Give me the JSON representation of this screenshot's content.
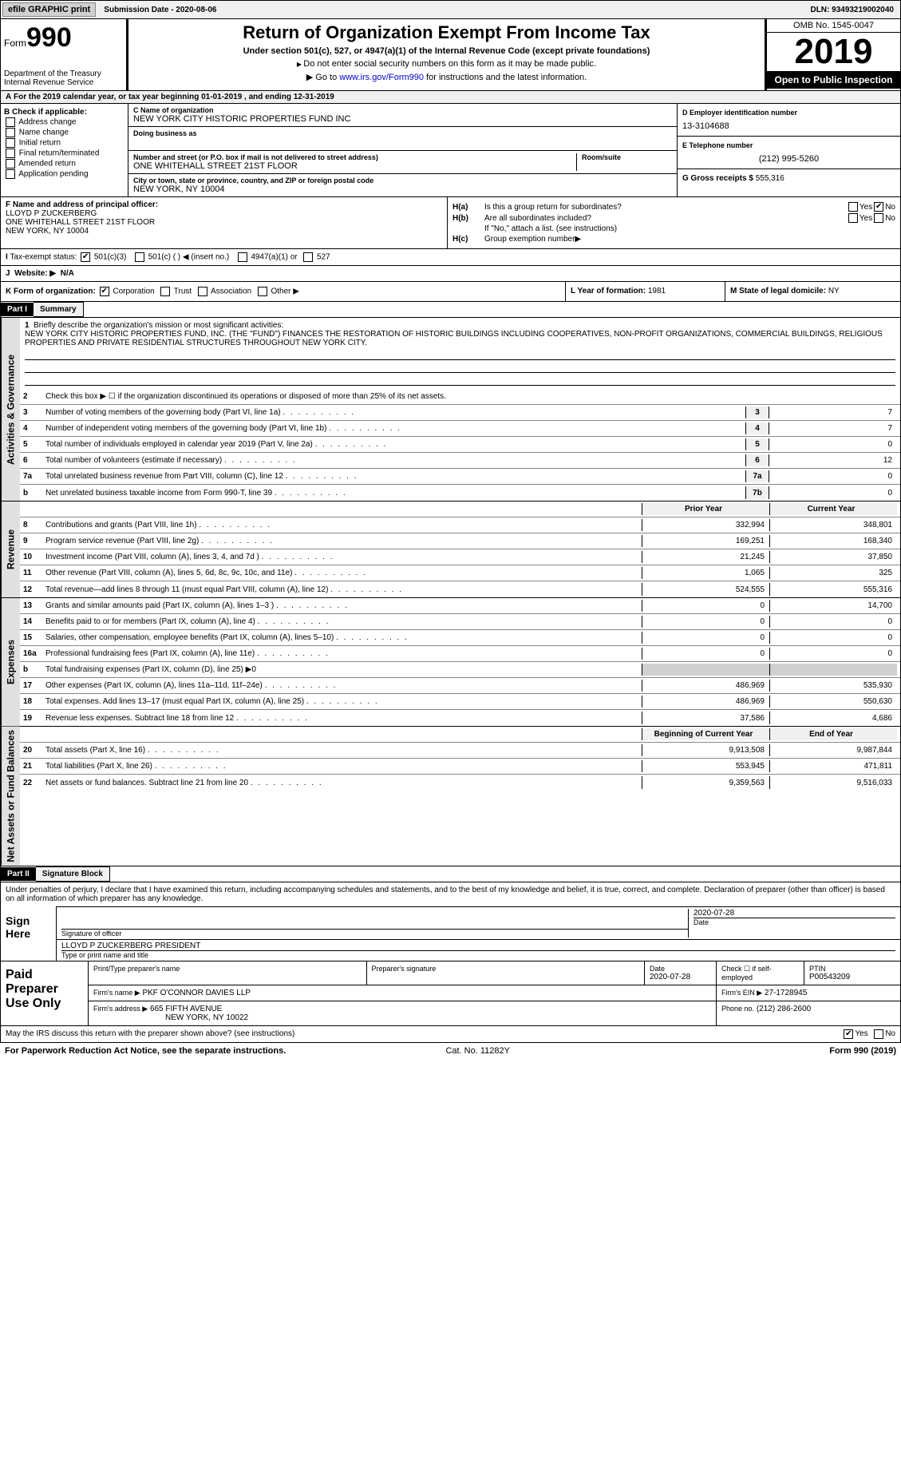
{
  "topbar": {
    "efile": "efile GRAPHIC print",
    "submission": "Submission Date - 2020-08-06",
    "dln": "DLN: 93493219002040"
  },
  "header": {
    "form_label": "Form",
    "form_num": "990",
    "dept": "Department of the Treasury\nInternal Revenue Service",
    "title": "Return of Organization Exempt From Income Tax",
    "sub1": "Under section 501(c), 527, or 4947(a)(1) of the Internal Revenue Code (except private foundations)",
    "sub2": "Do not enter social security numbers on this form as it may be made public.",
    "sub3_pre": "Go to ",
    "sub3_link": "www.irs.gov/Form990",
    "sub3_post": " for instructions and the latest information.",
    "omb": "OMB No. 1545-0047",
    "year": "2019",
    "inspect": "Open to Public Inspection"
  },
  "taxyear": "For the 2019 calendar year, or tax year beginning 01-01-2019   , and ending 12-31-2019",
  "boxB": {
    "label": "B Check if applicable:",
    "items": [
      "Address change",
      "Name change",
      "Initial return",
      "Final return/terminated",
      "Amended return",
      "Application pending"
    ]
  },
  "boxC": {
    "name_lbl": "C Name of organization",
    "name": "NEW YORK CITY HISTORIC PROPERTIES FUND INC",
    "dba_lbl": "Doing business as",
    "dba": "",
    "addr_lbl": "Number and street (or P.O. box if mail is not delivered to street address)",
    "addr": "ONE WHITEHALL STREET 21ST FLOOR",
    "room_lbl": "Room/suite",
    "city_lbl": "City or town, state or province, country, and ZIP or foreign postal code",
    "city": "NEW YORK, NY  10004"
  },
  "boxD": {
    "lbl": "D Employer identification number",
    "val": "13-3104688"
  },
  "boxE": {
    "lbl": "E Telephone number",
    "val": "(212) 995-5260"
  },
  "boxG": {
    "lbl": "G Gross receipts $",
    "val": "555,316"
  },
  "boxF": {
    "lbl": "F Name and address of principal officer:",
    "name": "LLOYD P ZUCKERBERG",
    "addr1": "ONE WHITEHALL STREET 21ST FLOOR",
    "addr2": "NEW YORK, NY  10004"
  },
  "boxH": {
    "ha": "Is this a group return for subordinates?",
    "hb": "Are all subordinates included?",
    "hnote": "If \"No,\" attach a list. (see instructions)",
    "hc": "Group exemption number"
  },
  "boxI": {
    "lbl": "Tax-exempt status:",
    "opts": [
      "501(c)(3)",
      "501(c) (  ) ◀ (insert no.)",
      "4947(a)(1) or",
      "527"
    ]
  },
  "boxJ": {
    "lbl": "Website: ▶",
    "val": "N/A"
  },
  "boxK": {
    "lbl": "K Form of organization:",
    "opts": [
      "Corporation",
      "Trust",
      "Association",
      "Other ▶"
    ]
  },
  "boxL": {
    "lbl": "L Year of formation:",
    "val": "1981"
  },
  "boxM": {
    "lbl": "M State of legal domicile:",
    "val": "NY"
  },
  "part1": {
    "hdr": "Part I",
    "title": "Summary",
    "mission_lbl": "Briefly describe the organization's mission or most significant activities:",
    "mission": "NEW YORK CITY HISTORIC PROPERTIES FUND, INC. (THE \"FUND\") FINANCES THE RESTORATION OF HISTORIC BUILDINGS INCLUDING COOPERATIVES, NON-PROFIT ORGANIZATIONS, COMMERCIAL BUILDINGS, RELIGIOUS PROPERTIES AND PRIVATE RESIDENTIAL STRUCTURES THROUGHOUT NEW YORK CITY.",
    "line2": "Check this box ▶ ☐ if the organization discontinued its operations or disposed of more than 25% of its net assets.",
    "governance_lbl": "Activities & Governance",
    "revenue_lbl": "Revenue",
    "expenses_lbl": "Expenses",
    "netassets_lbl": "Net Assets or Fund Balances",
    "lines_gov": [
      {
        "n": "3",
        "d": "Number of voting members of the governing body (Part VI, line 1a)",
        "box": "3",
        "v": "7"
      },
      {
        "n": "4",
        "d": "Number of independent voting members of the governing body (Part VI, line 1b)",
        "box": "4",
        "v": "7"
      },
      {
        "n": "5",
        "d": "Total number of individuals employed in calendar year 2019 (Part V, line 2a)",
        "box": "5",
        "v": "0"
      },
      {
        "n": "6",
        "d": "Total number of volunteers (estimate if necessary)",
        "box": "6",
        "v": "12"
      },
      {
        "n": "7a",
        "d": "Total unrelated business revenue from Part VIII, column (C), line 12",
        "box": "7a",
        "v": "0"
      },
      {
        "n": "b",
        "d": "Net unrelated business taxable income from Form 990-T, line 39",
        "box": "7b",
        "v": "0"
      }
    ],
    "col_prior": "Prior Year",
    "col_current": "Current Year",
    "lines_rev": [
      {
        "n": "8",
        "d": "Contributions and grants (Part VIII, line 1h)",
        "p": "332,994",
        "c": "348,801"
      },
      {
        "n": "9",
        "d": "Program service revenue (Part VIII, line 2g)",
        "p": "169,251",
        "c": "168,340"
      },
      {
        "n": "10",
        "d": "Investment income (Part VIII, column (A), lines 3, 4, and 7d )",
        "p": "21,245",
        "c": "37,850"
      },
      {
        "n": "11",
        "d": "Other revenue (Part VIII, column (A), lines 5, 6d, 8c, 9c, 10c, and 11e)",
        "p": "1,065",
        "c": "325"
      },
      {
        "n": "12",
        "d": "Total revenue—add lines 8 through 11 (must equal Part VIII, column (A), line 12)",
        "p": "524,555",
        "c": "555,316"
      }
    ],
    "lines_exp": [
      {
        "n": "13",
        "d": "Grants and similar amounts paid (Part IX, column (A), lines 1–3 )",
        "p": "0",
        "c": "14,700"
      },
      {
        "n": "14",
        "d": "Benefits paid to or for members (Part IX, column (A), line 4)",
        "p": "0",
        "c": "0"
      },
      {
        "n": "15",
        "d": "Salaries, other compensation, employee benefits (Part IX, column (A), lines 5–10)",
        "p": "0",
        "c": "0"
      },
      {
        "n": "16a",
        "d": "Professional fundraising fees (Part IX, column (A), line 11e)",
        "p": "0",
        "c": "0"
      },
      {
        "n": "b",
        "d": "Total fundraising expenses (Part IX, column (D), line 25) ▶0",
        "p": "",
        "c": "",
        "gray": true
      },
      {
        "n": "17",
        "d": "Other expenses (Part IX, column (A), lines 11a–11d, 11f–24e)",
        "p": "486,969",
        "c": "535,930"
      },
      {
        "n": "18",
        "d": "Total expenses. Add lines 13–17 (must equal Part IX, column (A), line 25)",
        "p": "486,969",
        "c": "550,630"
      },
      {
        "n": "19",
        "d": "Revenue less expenses. Subtract line 18 from line 12",
        "p": "37,586",
        "c": "4,686"
      }
    ],
    "col_begin": "Beginning of Current Year",
    "col_end": "End of Year",
    "lines_na": [
      {
        "n": "20",
        "d": "Total assets (Part X, line 16)",
        "p": "9,913,508",
        "c": "9,987,844"
      },
      {
        "n": "21",
        "d": "Total liabilities (Part X, line 26)",
        "p": "553,945",
        "c": "471,811"
      },
      {
        "n": "22",
        "d": "Net assets or fund balances. Subtract line 21 from line 20",
        "p": "9,359,563",
        "c": "9,516,033"
      }
    ]
  },
  "part2": {
    "hdr": "Part II",
    "title": "Signature Block",
    "intro": "Under penalties of perjury, I declare that I have examined this return, including accompanying schedules and statements, and to the best of my knowledge and belief, it is true, correct, and complete. Declaration of preparer (other than officer) is based on all information of which preparer has any knowledge.",
    "sign_here": "Sign Here",
    "sig_officer": "Signature of officer",
    "sig_date": "2020-07-28",
    "date_lbl": "Date",
    "officer_name": "LLOYD P ZUCKERBERG  PRESIDENT",
    "name_lbl": "Type or print name and title",
    "paid": "Paid Preparer Use Only",
    "prep_name_lbl": "Print/Type preparer's name",
    "prep_sig_lbl": "Preparer's signature",
    "prep_date_lbl": "Date",
    "prep_date": "2020-07-28",
    "self_emp": "Check ☐ if self-employed",
    "ptin_lbl": "PTIN",
    "ptin": "P00543209",
    "firm_name_lbl": "Firm's name   ▶",
    "firm_name": "PKF O'CONNOR DAVIES LLP",
    "firm_ein_lbl": "Firm's EIN ▶",
    "firm_ein": "27-1728945",
    "firm_addr_lbl": "Firm's address ▶",
    "firm_addr": "665 FIFTH AVENUE",
    "firm_city": "NEW YORK, NY  10022",
    "phone_lbl": "Phone no.",
    "phone": "(212) 286-2600",
    "discuss": "May the IRS discuss this return with the preparer shown above? (see instructions)"
  },
  "footer": {
    "left": "For Paperwork Reduction Act Notice, see the separate instructions.",
    "mid": "Cat. No. 11282Y",
    "right": "Form 990 (2019)"
  }
}
